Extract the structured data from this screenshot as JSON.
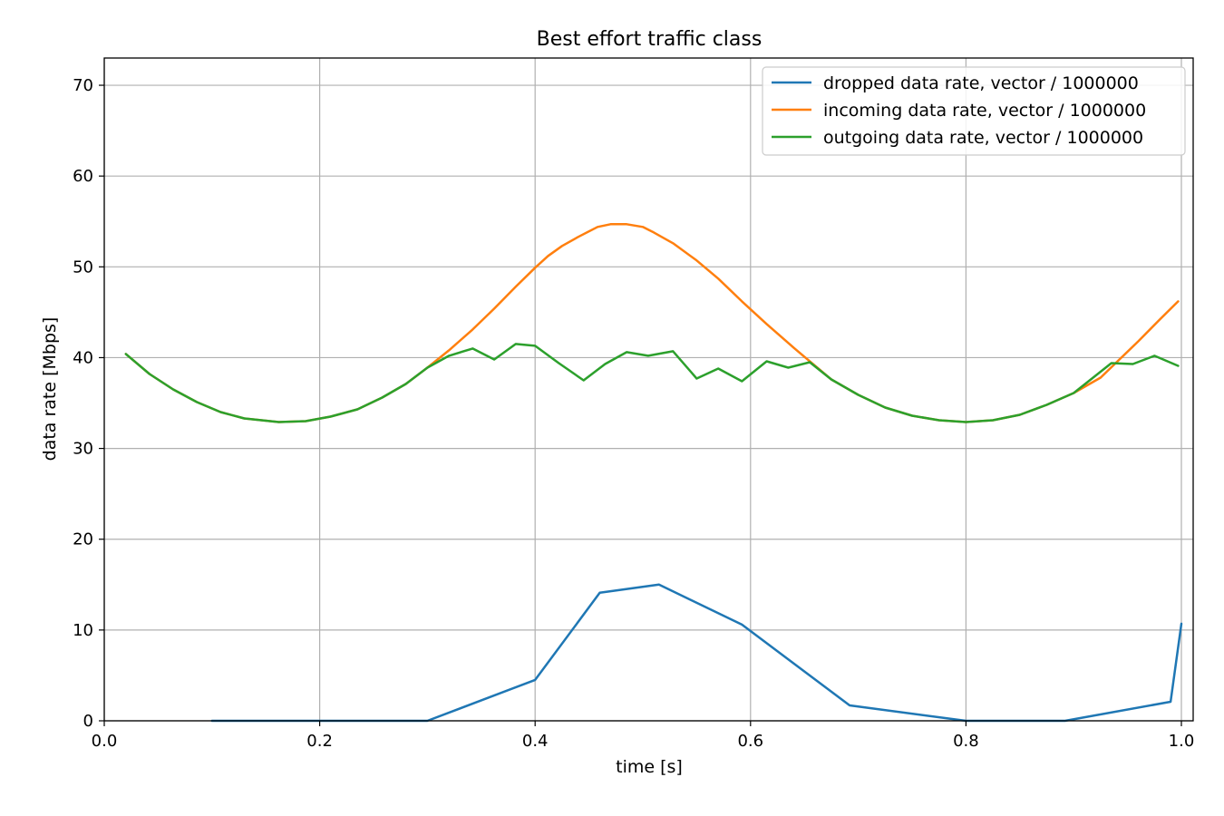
{
  "chart_data": {
    "type": "line",
    "title": "Best effort traffic class",
    "xlabel": "time [s]",
    "ylabel": "data rate [Mbps]",
    "xlim": [
      0.0,
      1.0
    ],
    "ylim": [
      0,
      73
    ],
    "xticks": [
      0.0,
      0.2,
      0.4,
      0.6,
      0.8,
      1.0
    ],
    "xtick_labels": [
      "0.0",
      "0.2",
      "0.4",
      "0.6",
      "0.8",
      "1.0"
    ],
    "yticks": [
      0,
      10,
      20,
      30,
      40,
      50,
      60,
      70
    ],
    "ytick_labels": [
      "0",
      "10",
      "20",
      "30",
      "40",
      "50",
      "60",
      "70"
    ],
    "grid": true,
    "legend_position": "top-right",
    "series": [
      {
        "name": "dropped data rate, vector / 1000000",
        "color": "#1f77b4",
        "x": [
          0.1,
          0.2,
          0.3,
          0.4,
          0.46,
          0.515,
          0.592,
          0.692,
          0.8,
          0.892,
          0.99,
          1.0
        ],
        "y": [
          0,
          0,
          0,
          4.5,
          14.1,
          15.0,
          10.6,
          1.7,
          0,
          0,
          2.1,
          10.7
        ]
      },
      {
        "name": "incoming data rate, vector / 1000000",
        "color": "#ff7f0e",
        "x": [
          0.02,
          0.042,
          0.064,
          0.086,
          0.108,
          0.13,
          0.162,
          0.187,
          0.21,
          0.235,
          0.258,
          0.28,
          0.3,
          0.32,
          0.342,
          0.362,
          0.382,
          0.4,
          0.412,
          0.425,
          0.44,
          0.458,
          0.47,
          0.485,
          0.5,
          0.51,
          0.528,
          0.55,
          0.57,
          0.592,
          0.615,
          0.64,
          0.655,
          0.675,
          0.7,
          0.725,
          0.75,
          0.775,
          0.8,
          0.825,
          0.85,
          0.875,
          0.9,
          0.925,
          0.96,
          0.98,
          0.997
        ],
        "y": [
          40.4,
          38.2,
          36.5,
          35.1,
          34.0,
          33.3,
          32.9,
          33.0,
          33.5,
          34.3,
          35.6,
          37.1,
          38.9,
          40.8,
          43.1,
          45.4,
          47.8,
          49.9,
          51.2,
          52.3,
          53.3,
          54.4,
          54.7,
          54.7,
          54.4,
          53.8,
          52.6,
          50.7,
          48.7,
          46.2,
          43.7,
          41.1,
          39.6,
          37.6,
          35.9,
          34.5,
          33.6,
          33.1,
          32.9,
          33.1,
          33.7,
          34.8,
          36.1,
          37.8,
          41.8,
          44.2,
          46.2
        ]
      },
      {
        "name": "outgoing data rate, vector / 1000000",
        "color": "#2ca02c",
        "x": [
          0.02,
          0.042,
          0.064,
          0.086,
          0.108,
          0.13,
          0.162,
          0.187,
          0.21,
          0.235,
          0.258,
          0.28,
          0.3,
          0.32,
          0.342,
          0.362,
          0.382,
          0.4,
          0.422,
          0.445,
          0.465,
          0.485,
          0.505,
          0.528,
          0.55,
          0.57,
          0.592,
          0.615,
          0.635,
          0.655,
          0.675,
          0.7,
          0.725,
          0.75,
          0.775,
          0.8,
          0.825,
          0.85,
          0.875,
          0.9,
          0.935,
          0.955,
          0.975,
          0.997
        ],
        "y": [
          40.4,
          38.2,
          36.5,
          35.1,
          34.0,
          33.3,
          32.9,
          33.0,
          33.5,
          34.3,
          35.6,
          37.1,
          38.9,
          40.2,
          41.0,
          39.8,
          41.5,
          41.3,
          39.4,
          37.5,
          39.3,
          40.6,
          40.2,
          40.7,
          37.7,
          38.8,
          37.4,
          39.6,
          38.9,
          39.5,
          37.6,
          35.9,
          34.5,
          33.6,
          33.1,
          32.9,
          33.1,
          33.7,
          34.8,
          36.1,
          39.4,
          39.3,
          40.2,
          39.1
        ]
      }
    ]
  }
}
